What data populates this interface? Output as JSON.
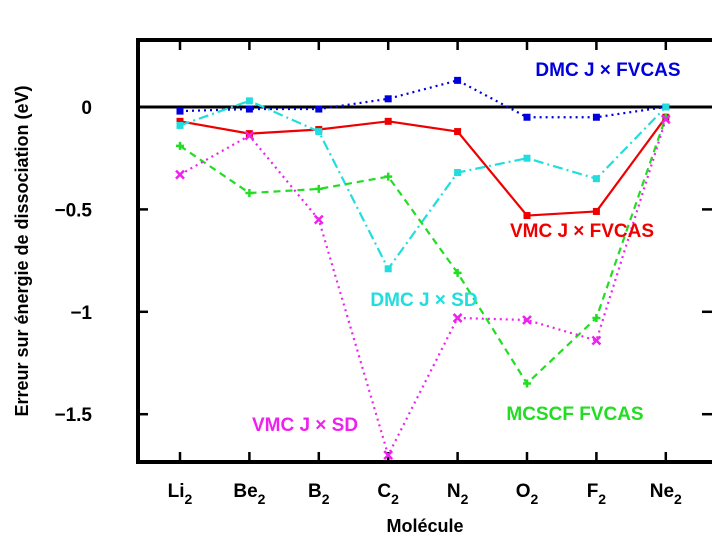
{
  "chart_data": {
    "type": "line",
    "xlabel": "Molécule",
    "ylabel": "Erreur sur énergie de dissociation (eV)",
    "categories": [
      {
        "base": "Li",
        "sub": "2"
      },
      {
        "base": "Be",
        "sub": "2"
      },
      {
        "base": "B",
        "sub": "2"
      },
      {
        "base": "C",
        "sub": "2"
      },
      {
        "base": "N",
        "sub": "2"
      },
      {
        "base": "O",
        "sub": "2"
      },
      {
        "base": "F",
        "sub": "2"
      },
      {
        "base": "Ne",
        "sub": "2"
      }
    ],
    "ylim": [
      -1.75,
      0.3
    ],
    "yticks": [
      0,
      -0.5,
      -1,
      -1.5
    ],
    "ytick_labels": [
      "0",
      "−0.5",
      "−1",
      "−1.5"
    ],
    "grid": false,
    "zero_line": true,
    "series": [
      {
        "name": "DMC J × FVCAS",
        "color": "#0000dd",
        "dash": "dotted",
        "marker": "square",
        "values": [
          -0.02,
          -0.01,
          -0.01,
          0.04,
          0.13,
          -0.05,
          -0.05,
          0.0
        ]
      },
      {
        "name": "VMC J × FVCAS",
        "color": "#ee0000",
        "dash": "solid",
        "marker": "square",
        "values": [
          -0.07,
          -0.13,
          -0.11,
          -0.07,
          -0.12,
          -0.53,
          -0.51,
          -0.05
        ]
      },
      {
        "name": "DMC J × SD",
        "color": "#22dddd",
        "dash": "dashdot",
        "marker": "square",
        "values": [
          -0.09,
          0.03,
          -0.12,
          -0.79,
          -0.32,
          -0.25,
          -0.35,
          0.0
        ]
      },
      {
        "name": "MCSCF FVCAS",
        "color": "#22dd22",
        "dash": "dashed",
        "marker": "plus",
        "values": [
          -0.19,
          -0.42,
          -0.4,
          -0.34,
          -0.81,
          -1.35,
          -1.03,
          -0.05
        ]
      },
      {
        "name": "VMC J × SD",
        "color": "#ee22ee",
        "dash": "dotted",
        "marker": "cross",
        "values": [
          -0.33,
          -0.14,
          -0.55,
          -1.7,
          -1.03,
          -1.04,
          -1.14,
          -0.06
        ]
      }
    ]
  }
}
